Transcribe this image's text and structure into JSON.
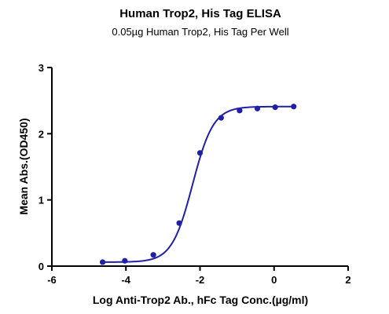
{
  "chart_data": {
    "type": "scatter",
    "title": "Human Trop2, His Tag ELISA",
    "subtitle": "0.05µg Human Trop2, His Tag Per Well",
    "xlabel": "Log Anti-Trop2 Ab., hFc Tag Conc.(µg/ml)",
    "ylabel": "Mean Abs.(OD450)",
    "xlim": [
      -6,
      2
    ],
    "ylim": [
      0,
      3
    ],
    "x_ticks": [
      "-6",
      "-4",
      "-2",
      "0",
      "2"
    ],
    "y_ticks": [
      "0",
      "1",
      "2",
      "3"
    ],
    "grid": false,
    "color": "#1f1fa8",
    "series": [
      {
        "points": [
          {
            "x": -4.63,
            "y": 0.06
          },
          {
            "x": -4.03,
            "y": 0.08
          },
          {
            "x": -3.26,
            "y": 0.17
          },
          {
            "x": -2.56,
            "y": 0.65
          },
          {
            "x": -2.0,
            "y": 1.71
          },
          {
            "x": -1.43,
            "y": 2.24
          },
          {
            "x": -0.93,
            "y": 2.35
          },
          {
            "x": -0.45,
            "y": 2.38
          },
          {
            "x": 0.03,
            "y": 2.4
          },
          {
            "x": 0.53,
            "y": 2.41
          }
        ],
        "fit": {
          "bottom": 0.06,
          "top": 2.41,
          "logEC50": -2.2,
          "hill": 1.55
        }
      }
    ]
  }
}
